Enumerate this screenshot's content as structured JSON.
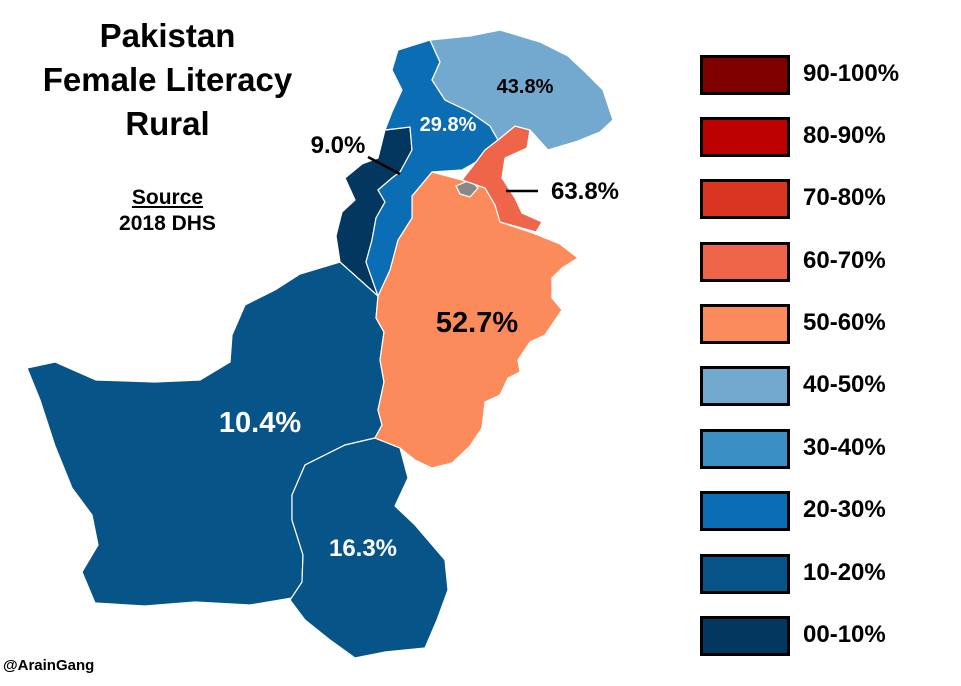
{
  "title": {
    "line1": "Pakistan",
    "line2": "Female Literacy",
    "line3": "Rural"
  },
  "source": {
    "heading": "Source",
    "text": "2018 DHS"
  },
  "credit": "@ArainGang",
  "regions": {
    "gilgit": {
      "value": "43.8%",
      "bin": "40-50%",
      "color": "#74a9cf"
    },
    "kpk": {
      "value": "29.8%",
      "bin": "20-30%",
      "color": "#0b6db3"
    },
    "fata": {
      "value": "9.0%",
      "bin": "00-10%",
      "color": "#04375f"
    },
    "azad_kashmir": {
      "value": "63.8%",
      "bin": "60-70%",
      "color": "#ef654a"
    },
    "punjab": {
      "value": "52.7%",
      "bin": "50-60%",
      "color": "#fb8b5a"
    },
    "balochistan": {
      "value": "10.4%",
      "bin": "10-20%",
      "color": "#075489"
    },
    "sindh": {
      "value": "16.3%",
      "bin": "10-20%",
      "color": "#075489"
    },
    "islamabad": {
      "color": "#888888"
    }
  },
  "legend": [
    {
      "label": "90-100%",
      "color": "#800000"
    },
    {
      "label": "80-90%",
      "color": "#bd0000"
    },
    {
      "label": "70-80%",
      "color": "#d93520"
    },
    {
      "label": "60-70%",
      "color": "#ef654a"
    },
    {
      "label": "50-60%",
      "color": "#fb8b5a"
    },
    {
      "label": "40-50%",
      "color": "#74a9cf"
    },
    {
      "label": "30-40%",
      "color": "#3a8fc4"
    },
    {
      "label": "20-30%",
      "color": "#0b6db3"
    },
    {
      "label": "10-20%",
      "color": "#075489"
    },
    {
      "label": "00-10%",
      "color": "#04375f"
    }
  ]
}
